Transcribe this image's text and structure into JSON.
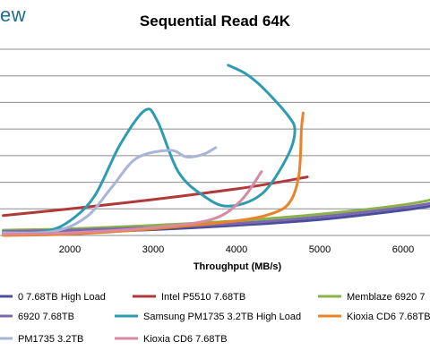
{
  "brand": {
    "text": "ew"
  },
  "chart_data": {
    "type": "line",
    "title": "Sequential Read 64K",
    "xlabel": "Throughput (MB/s)",
    "ylabel": "",
    "xticks": [
      2000,
      3000,
      4000,
      5000,
      6000
    ],
    "xlim": [
      1200,
      6500
    ],
    "ylim": [
      0,
      7
    ],
    "ygrid": [
      1,
      2,
      3,
      4,
      5,
      6,
      7
    ],
    "grid": "horizontal",
    "legend_position": "bottom",
    "series": [
      {
        "name": "0 7.68TB High Load",
        "color": "#4a4e9c",
        "x": [
          1200,
          2000,
          3000,
          4000,
          5000,
          6000,
          6500
        ],
        "y": [
          0.1,
          0.12,
          0.22,
          0.38,
          0.6,
          0.95,
          1.2
        ]
      },
      {
        "name": "Intel P5510 7.68TB",
        "color": "#b03a3a",
        "x": [
          1200,
          2000,
          3000,
          4000,
          4500,
          4850
        ],
        "y": [
          0.75,
          1.0,
          1.35,
          1.75,
          2.0,
          2.2
        ]
      },
      {
        "name": "Memblaze 6920 7",
        "color": "#8ab34a",
        "x": [
          1200,
          2000,
          3000,
          4000,
          5000,
          6000,
          6500
        ],
        "y": [
          0.2,
          0.25,
          0.38,
          0.55,
          0.8,
          1.15,
          1.45
        ]
      },
      {
        "name": "6920 7.68TB",
        "color": "#7b68b0",
        "x": [
          1200,
          2000,
          3000,
          4000,
          5000,
          6000,
          6500
        ],
        "y": [
          0.15,
          0.2,
          0.3,
          0.45,
          0.7,
          1.05,
          1.3
        ]
      },
      {
        "name": "Samsung PM1735 3.2TB High Load",
        "color": "#2e9bb0",
        "x": [
          1200,
          1700,
          2000,
          2300,
          2600,
          2900,
          3050,
          3300,
          3600,
          3900,
          4300,
          4600,
          4700,
          4620,
          4300,
          4100,
          3900
        ],
        "y": [
          0.05,
          0.15,
          0.55,
          1.5,
          3.4,
          4.7,
          4.3,
          2.4,
          1.5,
          1.1,
          1.55,
          2.9,
          3.9,
          4.5,
          5.6,
          6.1,
          6.4
        ]
      },
      {
        "name": "Kioxia CD6 7.68TB",
        "color": "#e8832a",
        "x": [
          1200,
          2000,
          3000,
          4000,
          4450,
          4650,
          4750,
          4780,
          4800
        ],
        "y": [
          0.0,
          0.05,
          0.25,
          0.55,
          0.85,
          1.3,
          2.3,
          4.0,
          4.6
        ]
      },
      {
        "name": "PM1735 3.2TB",
        "color": "#a8b4d8",
        "x": [
          1200,
          1800,
          2200,
          2500,
          2800,
          3200,
          3400,
          3600,
          3750
        ],
        "y": [
          0.1,
          0.15,
          0.7,
          1.8,
          2.9,
          3.2,
          2.95,
          3.05,
          3.3
        ]
      },
      {
        "name": "Kioxia CD6 7.68TB",
        "color": "#d88aa3",
        "x": [
          1200,
          2000,
          3000,
          3700,
          4050,
          4300
        ],
        "y": [
          0.05,
          0.1,
          0.3,
          0.6,
          1.3,
          2.4
        ]
      }
    ]
  }
}
